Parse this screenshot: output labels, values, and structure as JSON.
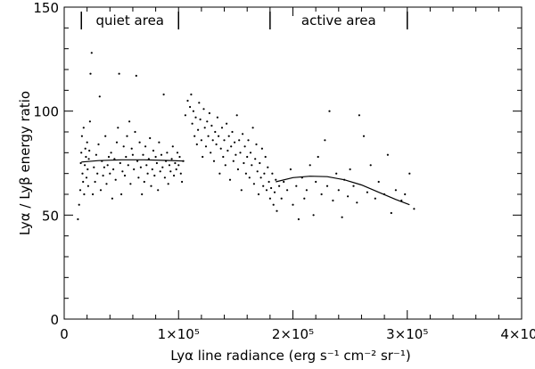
{
  "chart_data": {
    "type": "scatter",
    "xlabel": "Lyα line radiance (erg s⁻¹ cm⁻² sr⁻¹)",
    "ylabel": "Lyα / Lyβ energy ratio",
    "xlim": [
      0,
      400000
    ],
    "ylim": [
      0,
      150
    ],
    "x_ticks": [
      0,
      100000,
      200000,
      300000,
      400000
    ],
    "x_tick_labels": [
      "0",
      "1×10⁵",
      "2×10⁵",
      "3×10⁵",
      "4×10⁵"
    ],
    "y_ticks": [
      0,
      50,
      100,
      150
    ],
    "y_tick_labels": [
      "0",
      "50",
      "100",
      "150"
    ],
    "grid": false,
    "region_labels": [
      {
        "text": "quiet area",
        "x_start": 15000,
        "x_end": 100000
      },
      {
        "text": "active area",
        "x_start": 180000,
        "x_end": 300000
      }
    ],
    "fit_curves": [
      {
        "name": "quiet fit",
        "x": [
          15000,
          30000,
          50000,
          70000,
          90000,
          105000
        ],
        "y": [
          75.5,
          76.2,
          76.6,
          76.6,
          76.3,
          76.0
        ]
      },
      {
        "name": "active fit",
        "x": [
          185000,
          200000,
          215000,
          230000,
          245000,
          260000,
          275000,
          290000,
          302000
        ],
        "y": [
          66.0,
          68.0,
          68.7,
          68.5,
          67.0,
          64.5,
          61.0,
          57.5,
          55.0
        ]
      }
    ],
    "series": [
      {
        "points": [
          [
            12000,
            48
          ],
          [
            13000,
            55
          ],
          [
            14000,
            62
          ],
          [
            14500,
            75
          ],
          [
            15000,
            80
          ],
          [
            15500,
            88
          ],
          [
            16000,
            70
          ],
          [
            16500,
            66
          ],
          [
            17000,
            92
          ],
          [
            17500,
            60
          ],
          [
            18000,
            74
          ],
          [
            18500,
            82
          ],
          [
            19000,
            78
          ],
          [
            19500,
            68
          ],
          [
            20000,
            85
          ],
          [
            20500,
            72
          ],
          [
            21000,
            64
          ],
          [
            21500,
            77
          ],
          [
            22000,
            81
          ],
          [
            22500,
            95
          ],
          [
            23000,
            118
          ],
          [
            24000,
            128
          ],
          [
            25000,
            60
          ],
          [
            26000,
            73
          ],
          [
            27000,
            66
          ],
          [
            28000,
            79
          ],
          [
            29000,
            70
          ],
          [
            30000,
            84
          ],
          [
            31000,
            107
          ],
          [
            32000,
            62
          ],
          [
            33000,
            76
          ],
          [
            34000,
            69
          ],
          [
            35000,
            73
          ],
          [
            36000,
            88
          ],
          [
            37000,
            65
          ],
          [
            38000,
            74
          ],
          [
            39000,
            78
          ],
          [
            40000,
            70
          ],
          [
            41000,
            80
          ],
          [
            42000,
            58
          ],
          [
            43000,
            72
          ],
          [
            44000,
            77
          ],
          [
            45000,
            67
          ],
          [
            46000,
            85
          ],
          [
            47000,
            92
          ],
          [
            48000,
            118
          ],
          [
            49000,
            75
          ],
          [
            50000,
            60
          ],
          [
            51000,
            71
          ],
          [
            52000,
            83
          ],
          [
            53000,
            69
          ],
          [
            54000,
            78
          ],
          [
            55000,
            88
          ],
          [
            56000,
            74
          ],
          [
            57000,
            95
          ],
          [
            58000,
            65
          ],
          [
            59000,
            82
          ],
          [
            60000,
            79
          ],
          [
            61000,
            72
          ],
          [
            62000,
            90
          ],
          [
            63000,
            117
          ],
          [
            64000,
            76
          ],
          [
            65000,
            68
          ],
          [
            66000,
            85
          ],
          [
            67000,
            73
          ],
          [
            68000,
            60
          ],
          [
            69000,
            79
          ],
          [
            70000,
            66
          ],
          [
            71000,
            83
          ],
          [
            72000,
            74
          ],
          [
            73000,
            70
          ],
          [
            74000,
            77
          ],
          [
            75000,
            87
          ],
          [
            76000,
            64
          ],
          [
            77000,
            72
          ],
          [
            78000,
            81
          ],
          [
            79000,
            69
          ],
          [
            80000,
            78
          ],
          [
            81000,
            75
          ],
          [
            82000,
            62
          ],
          [
            83000,
            85
          ],
          [
            84000,
            71
          ],
          [
            85000,
            79
          ],
          [
            86000,
            73
          ],
          [
            87000,
            108
          ],
          [
            88000,
            68
          ],
          [
            89000,
            76
          ],
          [
            90000,
            80
          ],
          [
            91000,
            65
          ],
          [
            92000,
            74
          ],
          [
            93000,
            71
          ],
          [
            94000,
            77
          ],
          [
            95000,
            83
          ],
          [
            96000,
            69
          ],
          [
            97000,
            75
          ],
          [
            98000,
            72
          ],
          [
            99000,
            80
          ],
          [
            100000,
            74
          ],
          [
            101000,
            78
          ],
          [
            102000,
            70
          ],
          [
            103000,
            66
          ],
          [
            104000,
            76
          ],
          [
            106000,
            98
          ],
          [
            108000,
            105
          ],
          [
            110000,
            102
          ],
          [
            111000,
            108
          ],
          [
            112000,
            94
          ],
          [
            113000,
            100
          ],
          [
            114000,
            88
          ],
          [
            115000,
            97
          ],
          [
            116000,
            84
          ],
          [
            117000,
            91
          ],
          [
            118000,
            104
          ],
          [
            119000,
            96
          ],
          [
            120000,
            86
          ],
          [
            121000,
            78
          ],
          [
            122000,
            101
          ],
          [
            123000,
            92
          ],
          [
            124000,
            83
          ],
          [
            125000,
            95
          ],
          [
            126000,
            88
          ],
          [
            127000,
            99
          ],
          [
            128000,
            80
          ],
          [
            129000,
            93
          ],
          [
            130000,
            86
          ],
          [
            131000,
            76
          ],
          [
            132000,
            90
          ],
          [
            133000,
            84
          ],
          [
            134000,
            97
          ],
          [
            135000,
            88
          ],
          [
            136000,
            70
          ],
          [
            137000,
            82
          ],
          [
            138000,
            92
          ],
          [
            139000,
            78
          ],
          [
            140000,
            86
          ],
          [
            141000,
            74
          ],
          [
            142000,
            94
          ],
          [
            143000,
            81
          ],
          [
            144000,
            88
          ],
          [
            145000,
            67
          ],
          [
            146000,
            83
          ],
          [
            147000,
            90
          ],
          [
            148000,
            76
          ],
          [
            149000,
            85
          ],
          [
            150000,
            79
          ],
          [
            151000,
            98
          ],
          [
            152000,
            72
          ],
          [
            153000,
            86
          ],
          [
            154000,
            80
          ],
          [
            155000,
            62
          ],
          [
            156000,
            89
          ],
          [
            157000,
            75
          ],
          [
            158000,
            83
          ],
          [
            159000,
            70
          ],
          [
            160000,
            78
          ],
          [
            161000,
            86
          ],
          [
            162000,
            68
          ],
          [
            163000,
            80
          ],
          [
            164000,
            74
          ],
          [
            165000,
            92
          ],
          [
            166000,
            65
          ],
          [
            167000,
            77
          ],
          [
            168000,
            84
          ],
          [
            169000,
            71
          ],
          [
            170000,
            60
          ],
          [
            171000,
            75
          ],
          [
            172000,
            68
          ],
          [
            173000,
            82
          ],
          [
            174000,
            64
          ],
          [
            175000,
            70
          ],
          [
            176000,
            78
          ],
          [
            177000,
            62
          ],
          [
            178000,
            73
          ],
          [
            179000,
            66
          ],
          [
            180000,
            58
          ],
          [
            181000,
            63
          ],
          [
            182000,
            70
          ],
          [
            183000,
            55
          ],
          [
            184000,
            61
          ],
          [
            185000,
            67
          ],
          [
            186000,
            52
          ],
          [
            188000,
            64
          ],
          [
            190000,
            58
          ],
          [
            192000,
            66
          ],
          [
            195000,
            62
          ],
          [
            198000,
            72
          ],
          [
            200000,
            55
          ],
          [
            203000,
            64
          ],
          [
            205000,
            48
          ],
          [
            208000,
            68
          ],
          [
            210000,
            58
          ],
          [
            212000,
            62
          ],
          [
            215000,
            74
          ],
          [
            218000,
            50
          ],
          [
            220000,
            66
          ],
          [
            222000,
            78
          ],
          [
            225000,
            60
          ],
          [
            228000,
            86
          ],
          [
            230000,
            64
          ],
          [
            232000,
            100
          ],
          [
            235000,
            57
          ],
          [
            238000,
            70
          ],
          [
            240000,
            62
          ],
          [
            243000,
            49
          ],
          [
            245000,
            67
          ],
          [
            248000,
            59
          ],
          [
            250000,
            72
          ],
          [
            253000,
            64
          ],
          [
            256000,
            56
          ],
          [
            258000,
            98
          ],
          [
            262000,
            88
          ],
          [
            265000,
            61
          ],
          [
            268000,
            74
          ],
          [
            272000,
            58
          ],
          [
            275000,
            66
          ],
          [
            280000,
            60
          ],
          [
            283000,
            79
          ],
          [
            286000,
            51
          ],
          [
            290000,
            62
          ],
          [
            295000,
            57
          ],
          [
            298000,
            60
          ],
          [
            302000,
            70
          ],
          [
            306000,
            53
          ]
        ]
      }
    ]
  }
}
